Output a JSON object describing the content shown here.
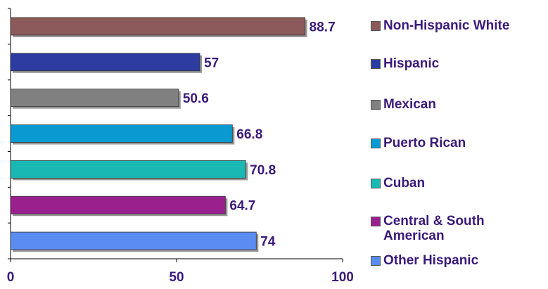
{
  "chart_data": {
    "type": "hbar",
    "categories": [
      "Non-Hispanic White",
      "Hispanic",
      "Mexican",
      "Puerto Rican",
      "Cuban",
      "Central & South American",
      "Other Hispanic"
    ],
    "values": [
      88.7,
      57,
      50.6,
      66.8,
      70.8,
      64.7,
      74
    ],
    "colors": [
      "#8c5a5a",
      "#2c3ca0",
      "#808080",
      "#0a9ad2",
      "#1ab8b2",
      "#9a208e",
      "#5a8cf2"
    ],
    "xlim": [
      0,
      100
    ],
    "xticks": [
      0,
      50,
      100
    ],
    "grid": false,
    "legend": "right"
  }
}
